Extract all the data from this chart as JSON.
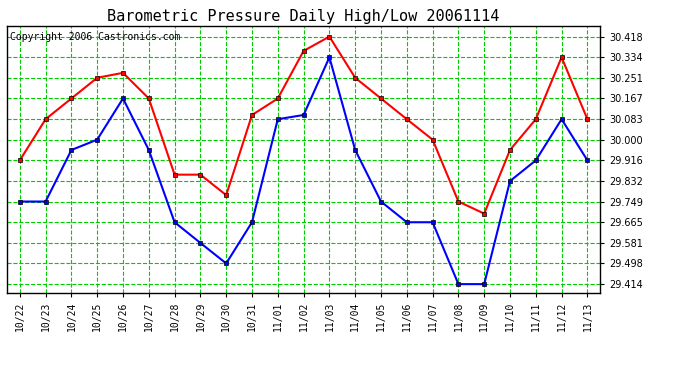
{
  "title": "Barometric Pressure Daily High/Low 20061114",
  "copyright": "Copyright 2006 Castronics.com",
  "x_labels": [
    "10/22",
    "10/23",
    "10/24",
    "10/25",
    "10/26",
    "10/27",
    "10/28",
    "10/29",
    "10/30",
    "10/31",
    "11/01",
    "11/02",
    "11/03",
    "11/04",
    "11/05",
    "11/06",
    "11/07",
    "11/08",
    "11/09",
    "11/10",
    "11/11",
    "11/12",
    "11/13"
  ],
  "high_values": [
    29.916,
    30.083,
    30.167,
    30.251,
    30.271,
    30.167,
    29.858,
    29.858,
    29.775,
    30.1,
    30.167,
    30.36,
    30.418,
    30.251,
    30.167,
    30.083,
    30.0,
    29.749,
    29.7,
    29.958,
    30.083,
    30.334,
    30.083
  ],
  "low_values": [
    29.749,
    29.749,
    29.958,
    30.0,
    30.167,
    29.958,
    29.665,
    29.581,
    29.498,
    29.665,
    30.083,
    30.1,
    30.334,
    29.958,
    29.749,
    29.665,
    29.665,
    29.414,
    29.414,
    29.832,
    29.916,
    30.083,
    29.916
  ],
  "y_ticks": [
    29.414,
    29.498,
    29.581,
    29.665,
    29.749,
    29.832,
    29.916,
    30.0,
    30.083,
    30.167,
    30.251,
    30.334,
    30.418
  ],
  "ylim_min": 29.38,
  "ylim_max": 30.46,
  "high_color": "#ff0000",
  "low_color": "#0000ff",
  "grid_color": "#00cc00",
  "bg_color": "#ffffff",
  "title_fontsize": 11,
  "copyright_fontsize": 7,
  "marker_size": 3,
  "line_width": 1.5
}
